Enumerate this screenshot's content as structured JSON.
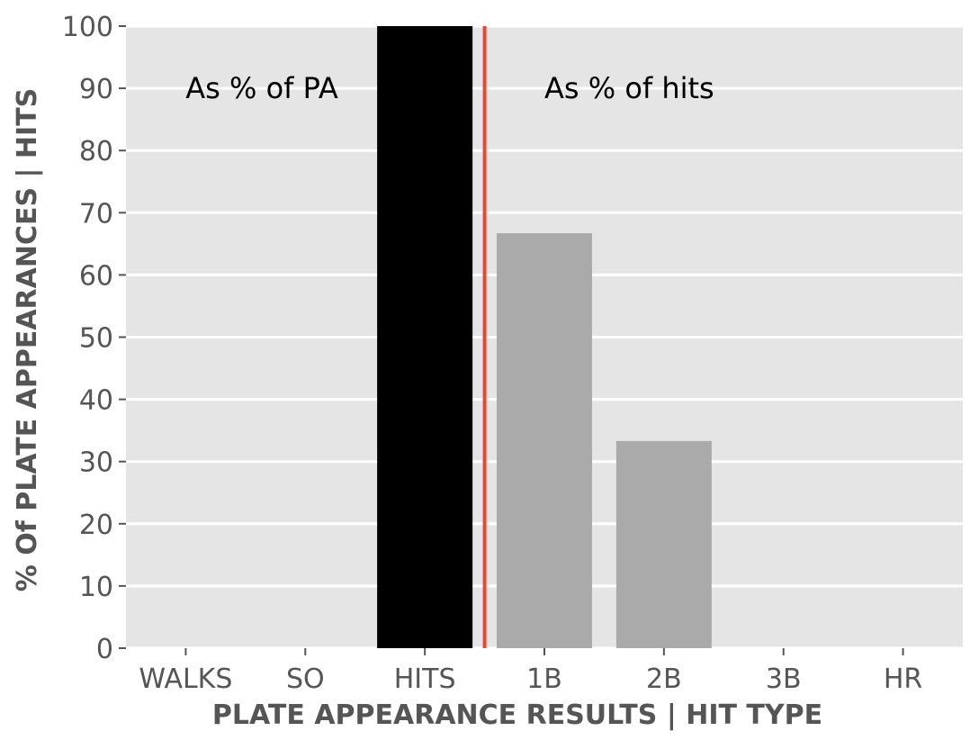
{
  "chart_data": {
    "type": "bar",
    "title": "",
    "xlabel": "PLATE APPEARANCE RESULTS | HIT TYPE",
    "ylabel": "% Of PLATE APPEARANCES | HITS",
    "ylim": [
      0,
      100
    ],
    "yticks": [
      "0",
      "10",
      "20",
      "30",
      "40",
      "50",
      "60",
      "70",
      "80",
      "90",
      "100"
    ],
    "categories": [
      "WALKS",
      "SO",
      "HITS",
      "1B",
      "2B",
      "3B",
      "HR"
    ],
    "values": [
      0,
      0,
      100,
      66.7,
      33.3,
      0,
      0
    ],
    "bar_colors": [
      "#000000",
      "#000000",
      "#000000",
      "#aaaaaa",
      "#aaaaaa",
      "#aaaaaa",
      "#aaaaaa"
    ],
    "divider": {
      "after_category": "HITS",
      "color": "#e24a33"
    },
    "annotations": [
      {
        "text": "As % of PA",
        "x_category": "SO",
        "y": 90
      },
      {
        "text": "As % of hits",
        "x_category": "1B",
        "y": 90
      }
    ],
    "grid": true,
    "background_color": "#e5e5e5",
    "grid_color": "#ffffff"
  }
}
